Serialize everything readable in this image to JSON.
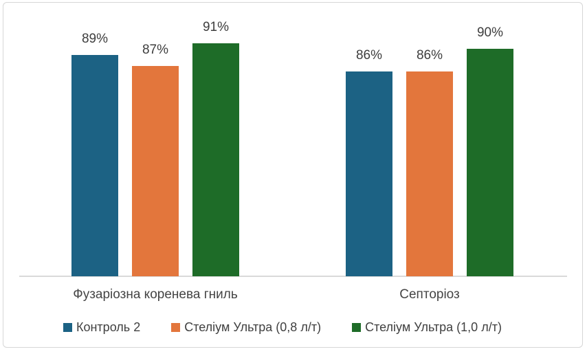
{
  "chart_data": {
    "type": "bar",
    "title": "",
    "xlabel": "",
    "ylabel": "",
    "unit": "%",
    "categories": [
      "Фузаріозна коренева гниль",
      "Септоріоз"
    ],
    "series": [
      {
        "name": "Контроль 2",
        "color": "#1c6284",
        "values": [
          89,
          86
        ]
      },
      {
        "name": "Стеліум Ультра (0,8 л/т)",
        "color": "#e3763c",
        "values": [
          87,
          86
        ]
      },
      {
        "name": "Стеліум Ультра (1,0 л/т)",
        "color": "#1e6c28",
        "values": [
          91,
          90
        ]
      }
    ],
    "data_labels": [
      [
        "89%",
        "87%",
        "91%"
      ],
      [
        "86%",
        "86%",
        "90%"
      ]
    ],
    "ylim": [
      50,
      95
    ],
    "grid": false,
    "legend_position": "bottom"
  },
  "colors": {
    "background": "#ffffff",
    "frame_border": "#d6d6d6",
    "axis_line": "#d9d9d9",
    "value_label_text": "#3d3d3d",
    "category_label_text": "#444444",
    "legend_text": "#404040"
  }
}
